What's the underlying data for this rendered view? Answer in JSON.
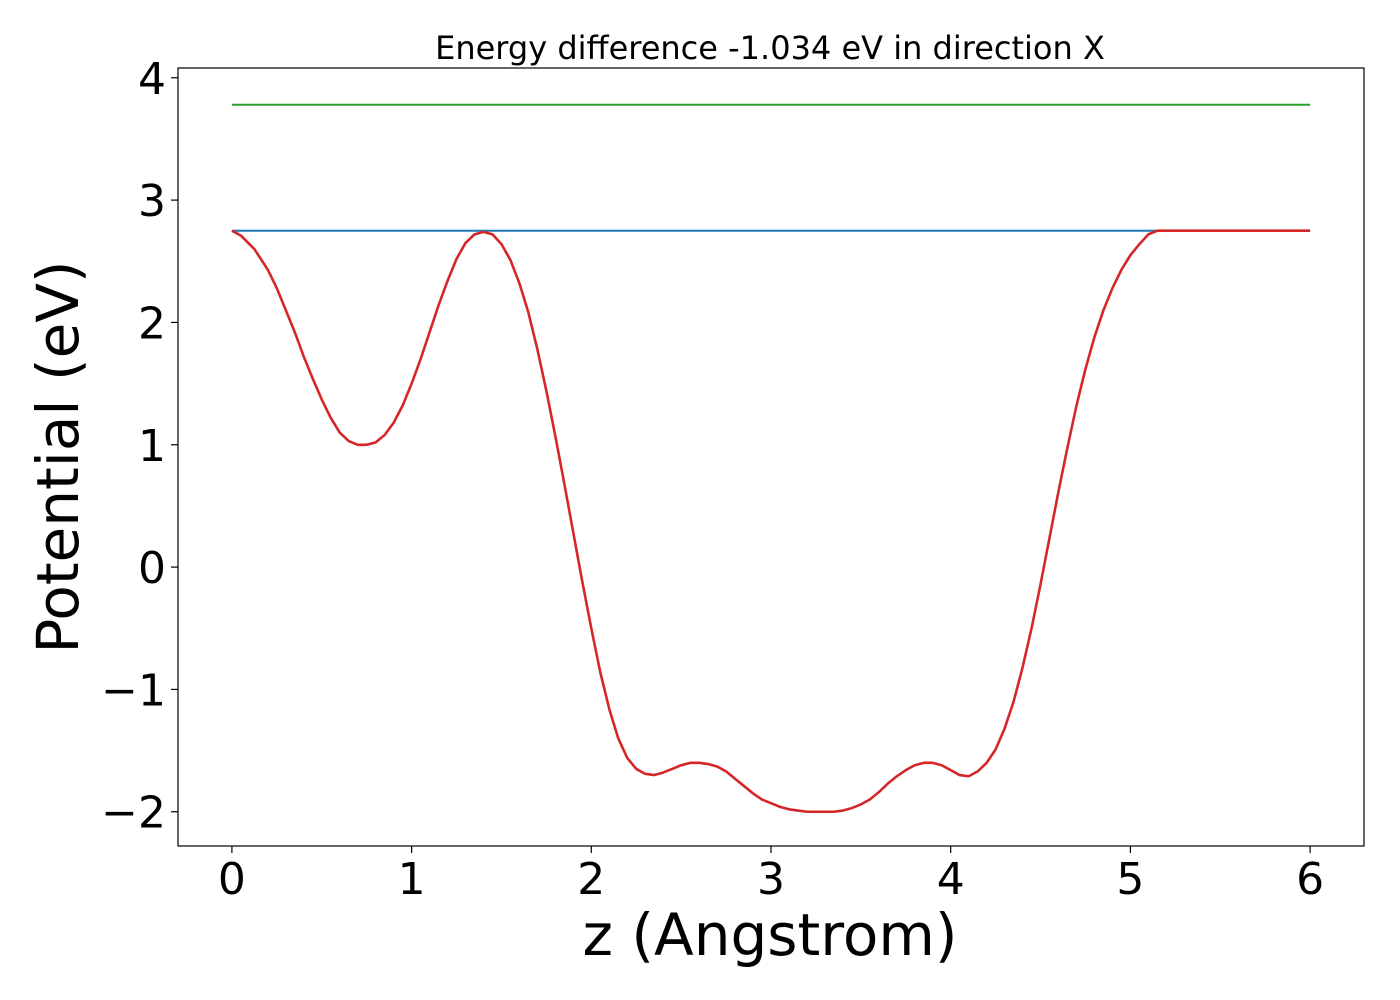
{
  "chart_data": {
    "type": "line",
    "title": "Energy difference -1.034 eV in direction X",
    "xlabel": "z (Angstrom)",
    "ylabel": "Potential (eV)",
    "xlim": [
      -0.3,
      6.3
    ],
    "ylim": [
      -2.28,
      4.08
    ],
    "xticks": [
      0,
      1,
      2,
      3,
      4,
      5,
      6
    ],
    "xtick_labels": [
      "0",
      "1",
      "2",
      "3",
      "4",
      "5",
      "6"
    ],
    "yticks": [
      -2,
      -1,
      0,
      1,
      2,
      3,
      4
    ],
    "ytick_labels": [
      "−2",
      "−1",
      "0",
      "1",
      "2",
      "3",
      "4"
    ],
    "grid": false,
    "series": [
      {
        "color": "#2ca02c",
        "x": [
          0,
          6
        ],
        "y": [
          3.78,
          3.78
        ]
      },
      {
        "color": "#1f77b4",
        "x": [
          0,
          6
        ],
        "y": [
          2.75,
          2.75
        ]
      },
      {
        "color": "#d62728",
        "x": [
          0,
          0.05,
          0.125,
          0.2,
          0.25,
          0.3,
          0.35,
          0.4,
          0.45,
          0.5,
          0.55,
          0.6,
          0.65,
          0.7,
          0.75,
          0.8,
          0.85,
          0.9,
          0.95,
          1.0,
          1.05,
          1.1,
          1.15,
          1.2,
          1.25,
          1.3,
          1.35,
          1.4,
          1.45,
          1.5,
          1.55,
          1.6,
          1.65,
          1.7,
          1.75,
          1.8,
          1.85,
          1.9,
          1.95,
          2.0,
          2.05,
          2.1,
          2.15,
          2.2,
          2.25,
          2.3,
          2.35,
          2.4,
          2.45,
          2.5,
          2.55,
          2.6,
          2.65,
          2.7,
          2.75,
          2.8,
          2.85,
          2.9,
          2.95,
          3.0,
          3.05,
          3.1,
          3.15,
          3.2,
          3.25,
          3.3,
          3.35,
          3.4,
          3.45,
          3.5,
          3.55,
          3.6,
          3.65,
          3.7,
          3.75,
          3.8,
          3.85,
          3.9,
          3.95,
          4.0,
          4.05,
          4.1,
          4.15,
          4.2,
          4.25,
          4.3,
          4.35,
          4.4,
          4.45,
          4.5,
          4.55,
          4.6,
          4.65,
          4.7,
          4.75,
          4.8,
          4.85,
          4.9,
          4.95,
          5.0,
          5.05,
          5.1,
          5.15,
          5.2,
          5.25,
          5.3,
          5.35,
          5.4,
          5.45,
          5.5,
          5.55,
          5.6,
          5.65,
          5.7,
          5.75,
          5.8,
          5.85,
          5.9,
          5.95,
          6.0
        ],
        "y": [
          2.75,
          2.71,
          2.6,
          2.43,
          2.28,
          2.1,
          1.92,
          1.72,
          1.54,
          1.37,
          1.22,
          1.1,
          1.03,
          1.0,
          1.0,
          1.02,
          1.08,
          1.18,
          1.32,
          1.5,
          1.7,
          1.92,
          2.14,
          2.34,
          2.52,
          2.65,
          2.72,
          2.74,
          2.72,
          2.64,
          2.51,
          2.32,
          2.08,
          1.78,
          1.44,
          1.07,
          0.68,
          0.28,
          -0.12,
          -0.5,
          -0.86,
          -1.16,
          -1.4,
          -1.56,
          -1.65,
          -1.69,
          -1.7,
          -1.68,
          -1.65,
          -1.62,
          -1.6,
          -1.6,
          -1.61,
          -1.63,
          -1.67,
          -1.73,
          -1.79,
          -1.85,
          -1.9,
          -1.93,
          -1.96,
          -1.98,
          -1.99,
          -2.0,
          -2.0,
          -2.0,
          -2.0,
          -1.99,
          -1.97,
          -1.94,
          -1.9,
          -1.84,
          -1.77,
          -1.71,
          -1.66,
          -1.62,
          -1.6,
          -1.6,
          -1.62,
          -1.66,
          -1.7,
          -1.71,
          -1.67,
          -1.6,
          -1.49,
          -1.32,
          -1.1,
          -0.82,
          -0.5,
          -0.14,
          0.24,
          0.62,
          0.98,
          1.32,
          1.62,
          1.88,
          2.1,
          2.28,
          2.43,
          2.55,
          2.64,
          2.72,
          2.75,
          2.75,
          2.75,
          2.75,
          2.75,
          2.75,
          2.75,
          2.75,
          2.75,
          2.75,
          2.75,
          2.75,
          2.75,
          2.75,
          2.75,
          2.75,
          2.75,
          2.75
        ]
      }
    ]
  }
}
